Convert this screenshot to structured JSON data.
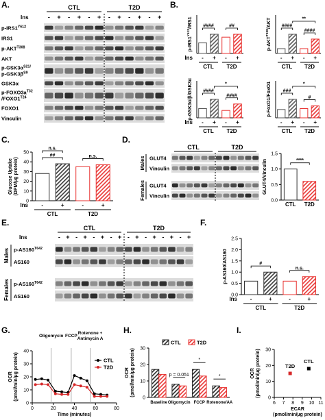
{
  "panel_letters": [
    "A.",
    "B.",
    "C.",
    "D.",
    "E.",
    "F.",
    "G.",
    "H.",
    "I."
  ],
  "blots": {
    "A": {
      "groups": [
        "CTL",
        "T2D"
      ],
      "lane_label": "Ins",
      "lanes": [
        "-",
        "+",
        "-",
        "+",
        "-",
        "+",
        "-",
        "+",
        "-",
        "+",
        "-",
        "+"
      ],
      "rows": [
        {
          "lines": [
            [
              {
                "t": "p-IRS1"
              },
              {
                "t": "Y612",
                "sup": true
              }
            ]
          ]
        },
        {
          "lines": [
            [
              {
                "t": "IRS1"
              }
            ]
          ]
        },
        {
          "lines": [
            [
              {
                "t": "p-AKT"
              },
              {
                "t": "T308",
                "sup": true
              }
            ]
          ]
        },
        {
          "lines": [
            [
              {
                "t": "AKT"
              }
            ]
          ]
        },
        {
          "lines": [
            [
              {
                "t": "p-GSK3α"
              },
              {
                "t": "S21/",
                "sup": true
              }
            ],
            [
              {
                "t": "p-GSK3β"
              },
              {
                "t": "S9",
                "sup": true
              }
            ]
          ]
        },
        {
          "lines": [
            [
              {
                "t": "GSK3α"
              }
            ]
          ]
        },
        {
          "lines": [
            [
              {
                "t": "p-FOXO3a"
              },
              {
                "t": "T32",
                "sup": true
              }
            ],
            [
              {
                "t": "/FOXO1"
              },
              {
                "t": "T24",
                "sup": true
              }
            ]
          ]
        },
        {
          "lines": [
            [
              {
                "t": "FOXO1"
              }
            ]
          ]
        },
        {
          "lines": [
            [
              {
                "t": "Vinculin"
              }
            ]
          ]
        }
      ]
    },
    "D": {
      "groups": [
        "CTL",
        "T2D"
      ],
      "sections": [
        {
          "name": "Males",
          "rows": [
            {
              "lines": [
                [
                  {
                    "t": "GLUT4"
                  }
                ]
              ]
            },
            {
              "lines": [
                [
                  {
                    "t": "Vinculin"
                  }
                ]
              ]
            }
          ]
        },
        {
          "name": "Females",
          "rows": [
            {
              "lines": [
                [
                  {
                    "t": "GLUT4"
                  }
                ]
              ]
            },
            {
              "lines": [
                [
                  {
                    "t": "Vinculin"
                  }
                ]
              ]
            }
          ]
        }
      ]
    },
    "E": {
      "groups": [
        "CTL",
        "T2D"
      ],
      "lane_label": "Ins",
      "lanes": [
        "-",
        "+",
        "-",
        "+",
        "-",
        "+",
        "-",
        "+",
        "-",
        "+",
        "-",
        "+",
        "-",
        "+",
        "-",
        "+"
      ],
      "sections": [
        {
          "name": "Males",
          "rows": [
            {
              "lines": [
                [
                  {
                    "t": "p-AS160"
                  },
                  {
                    "t": "T642",
                    "sup": true
                  }
                ]
              ]
            },
            {
              "lines": [
                [
                  {
                    "t": "AS160"
                  }
                ]
              ]
            }
          ]
        },
        {
          "name": "Females",
          "rows": [
            {
              "lines": [
                [
                  {
                    "t": "p-AS160"
                  },
                  {
                    "t": "T642",
                    "sup": true
                  }
                ]
              ]
            },
            {
              "lines": [
                [
                  {
                    "t": "AS160"
                  }
                ]
              ]
            }
          ]
        }
      ]
    }
  },
  "chart_data": [
    {
      "type": "bar",
      "y_label": [
        [
          {
            "t": "p-IRS1"
          },
          {
            "t": "Y612",
            "sup": true
          },
          {
            "t": "/IRS1"
          }
        ]
      ],
      "x_label": "Ins",
      "categories": [
        "-",
        "+",
        "-",
        "+"
      ],
      "group_labels": [
        "CTL",
        "T2D"
      ],
      "values": [
        0.55,
        1.0,
        0.85,
        1.0
      ],
      "colors": [
        "#555555",
        "#555555",
        "#e8312f",
        "#e8312f"
      ],
      "hatched": [
        false,
        true,
        false,
        true
      ],
      "ylim": [
        0,
        2
      ],
      "annotations": [
        {
          "text": "####",
          "bars": [
            0,
            1
          ]
        },
        {
          "text": "##",
          "bars": [
            2,
            3
          ]
        }
      ]
    },
    {
      "type": "bar",
      "y_label": [
        [
          {
            "t": "p-AKT"
          },
          {
            "t": "T308",
            "sup": true
          },
          {
            "t": "/AKT"
          }
        ]
      ],
      "categories": [
        "-",
        "+",
        "-",
        "+"
      ],
      "group_labels": [
        "CTL",
        "T2D"
      ],
      "values": [
        0.25,
        1.0,
        0.25,
        0.75
      ],
      "colors": [
        "#555555",
        "#555555",
        "#e8312f",
        "#e8312f"
      ],
      "hatched": [
        false,
        true,
        false,
        true
      ],
      "ylim": [
        0,
        2
      ],
      "annotations": [
        {
          "text": "####",
          "bars": [
            0,
            1
          ]
        },
        {
          "text": "####",
          "bars": [
            2,
            3
          ]
        },
        {
          "text": "**",
          "bars": [
            1,
            3
          ]
        }
      ]
    },
    {
      "type": "bar",
      "y_label": [
        [
          {
            "t": "p-GSK3α/β/GSK3α"
          }
        ]
      ],
      "x_label": "Ins",
      "categories": [
        "-",
        "+",
        "-",
        "+"
      ],
      "group_labels": [
        "CTL",
        "T2D"
      ],
      "values": [
        0.5,
        1.0,
        0.4,
        0.75
      ],
      "colors": [
        "#555555",
        "#555555",
        "#e8312f",
        "#e8312f"
      ],
      "hatched": [
        false,
        true,
        false,
        true
      ],
      "ylim": [
        0,
        2
      ],
      "annotations": [
        {
          "text": "####",
          "bars": [
            0,
            1
          ]
        },
        {
          "text": "####",
          "bars": [
            2,
            3
          ]
        },
        {
          "text": "*",
          "bars": [
            1,
            3
          ]
        }
      ]
    },
    {
      "type": "bar",
      "y_label": [
        [
          {
            "t": "p-FoxO1/FoxO1"
          }
        ]
      ],
      "categories": [
        "-",
        "+",
        "-",
        "+"
      ],
      "group_labels": [
        "CTL",
        "T2D"
      ],
      "values": [
        0.45,
        1.0,
        0.5,
        0.65
      ],
      "colors": [
        "#555555",
        "#555555",
        "#e8312f",
        "#e8312f"
      ],
      "hatched": [
        false,
        true,
        false,
        true
      ],
      "ylim": [
        0,
        2
      ],
      "annotations": [
        {
          "text": "###",
          "bars": [
            0,
            1
          ]
        },
        {
          "text": "#",
          "bars": [
            2,
            3
          ]
        },
        {
          "text": "*",
          "bars": [
            1,
            3
          ]
        }
      ]
    },
    {
      "type": "bar",
      "y_label": [
        [
          {
            "t": "Glucose Uptake"
          }
        ],
        [
          {
            "t": "(DPM/µg protein)"
          }
        ]
      ],
      "x_label": "Ins",
      "categories": [
        "-",
        "+",
        "-",
        "+"
      ],
      "group_labels": [
        "CTL",
        "T2D"
      ],
      "values": [
        28,
        38,
        35,
        37
      ],
      "colors": [
        "#333333",
        "#333333",
        "#e8312f",
        "#e8312f"
      ],
      "hatched": [
        false,
        true,
        false,
        true
      ],
      "ylim": [
        0,
        50
      ],
      "yticks": [
        0,
        10,
        20,
        30,
        40,
        50
      ],
      "annotations": [
        {
          "text": "##",
          "bars": [
            0,
            1
          ]
        },
        {
          "text": "n.s.",
          "bars": [
            0,
            1
          ]
        },
        {
          "text": "n.s.",
          "bars": [
            2,
            3
          ]
        }
      ]
    },
    {
      "type": "bar",
      "y_label": [
        [
          {
            "t": "GLUT4/Vinculin"
          }
        ]
      ],
      "categories": [
        "CTL",
        "T2D"
      ],
      "values": [
        1.0,
        0.6
      ],
      "colors": [
        "#333333",
        "#e8312f"
      ],
      "hatched": [
        false,
        true
      ],
      "ylim": [
        0,
        1.5
      ],
      "yticks": [
        {
          "value": 0,
          "label": "0.0"
        },
        0.5,
        {
          "value": 1,
          "label": "1.0"
        },
        1.5
      ],
      "annotations": [
        {
          "text": "****",
          "bars": [
            0,
            1
          ]
        }
      ]
    },
    {
      "type": "bar",
      "y_label": [
        [
          {
            "t": "p-AS160/AS160"
          }
        ]
      ],
      "x_label": "Ins",
      "categories": [
        "-",
        "+",
        "-",
        "+"
      ],
      "group_labels": [
        "CTL",
        "T2D"
      ],
      "values": [
        0.6,
        1.0,
        0.6,
        0.8
      ],
      "colors": [
        "#333333",
        "#333333",
        "#e8312f",
        "#e8312f"
      ],
      "hatched": [
        false,
        true,
        false,
        true
      ],
      "ylim": [
        0,
        2.5
      ],
      "yticks": [
        {
          "value": 0,
          "label": "0.0"
        },
        0.5,
        {
          "value": 1,
          "label": "1.0"
        },
        1.5,
        {
          "value": 2,
          "label": "2.0"
        },
        2.5
      ],
      "annotations": [
        {
          "text": "#",
          "bars": [
            0,
            1
          ]
        },
        {
          "text": "n.s.",
          "bars": [
            2,
            3
          ]
        }
      ]
    },
    {
      "type": "line",
      "y_label": [
        [
          {
            "t": "OCR"
          }
        ],
        [
          {
            "t": "(pmol/min/µg protein)"
          }
        ]
      ],
      "x_label": [
        [
          {
            "t": "Time (minutes)"
          }
        ]
      ],
      "x": [
        3,
        9,
        15,
        22,
        28,
        34,
        40,
        46,
        52,
        59,
        65,
        71
      ],
      "series": [
        {
          "name": "CTL",
          "color": "#000000",
          "values": [
            18,
            18.5,
            17.5,
            9,
            8.5,
            8,
            21,
            19,
            17,
            7,
            6.5,
            6
          ]
        },
        {
          "name": "T2D",
          "color": "#d62728",
          "values": [
            14,
            14.5,
            14,
            7,
            6.5,
            6.5,
            14,
            13,
            12,
            5,
            5,
            5
          ]
        }
      ],
      "events": [
        {
          "label": [
            "Oligomycin"
          ],
          "x": 18
        },
        {
          "label": [
            "FCCP"
          ],
          "x": 37
        },
        {
          "label": [
            "Rotenone +",
            "Antimycin A"
          ],
          "x": 55
        }
      ],
      "xlim": [
        0,
        80
      ],
      "xticks": [
        0,
        20,
        40,
        60,
        80
      ],
      "ylim": [
        0,
        40
      ],
      "yticks": [
        0,
        10,
        20,
        30,
        40
      ],
      "legend": "right"
    },
    {
      "type": "bar",
      "y_label": [
        [
          {
            "t": "OCR"
          }
        ],
        [
          {
            "t": "(pmol/min/µg protein)"
          }
        ]
      ],
      "categories": [
        "Baseline",
        "Oligomycin",
        "FCCP",
        "Rotenone/AA"
      ],
      "series": [
        {
          "name": "CTL",
          "color": "#222222",
          "hatched": true,
          "values": [
            17,
            8,
            17,
            7
          ]
        },
        {
          "name": "T2D",
          "color": "#e8312f",
          "hatched": true,
          "values": [
            14,
            7,
            13,
            6
          ]
        }
      ],
      "ylim": [
        0,
        30
      ],
      "yticks": [
        0,
        10,
        20,
        30
      ],
      "legend": "top",
      "annotations": [
        {
          "text": "p = 0.051",
          "category": 1
        },
        {
          "text": "*",
          "category": 2
        },
        {
          "text": "*",
          "category": 3
        }
      ]
    },
    {
      "type": "scatter",
      "y_label": [
        [
          {
            "t": "OCR"
          }
        ],
        [
          {
            "t": "(pmol/min/µg protein)"
          }
        ]
      ],
      "x_label": [
        [
          {
            "t": "ECAR"
          }
        ],
        [
          {
            "t": "(pmol/min/µg protein)"
          }
        ]
      ],
      "series": [
        {
          "name": "CTL",
          "color": "#000000",
          "x": [
            9.7
          ],
          "y": [
            18
          ]
        },
        {
          "name": "T2D",
          "color": "#d62728",
          "x": [
            7.7
          ],
          "y": [
            15
          ]
        }
      ],
      "xlim": [
        6,
        11
      ],
      "xticks": [
        6,
        7,
        8,
        9,
        10,
        11
      ],
      "ylim": [
        0,
        30
      ],
      "yticks": [
        0,
        10,
        20,
        30
      ]
    }
  ]
}
